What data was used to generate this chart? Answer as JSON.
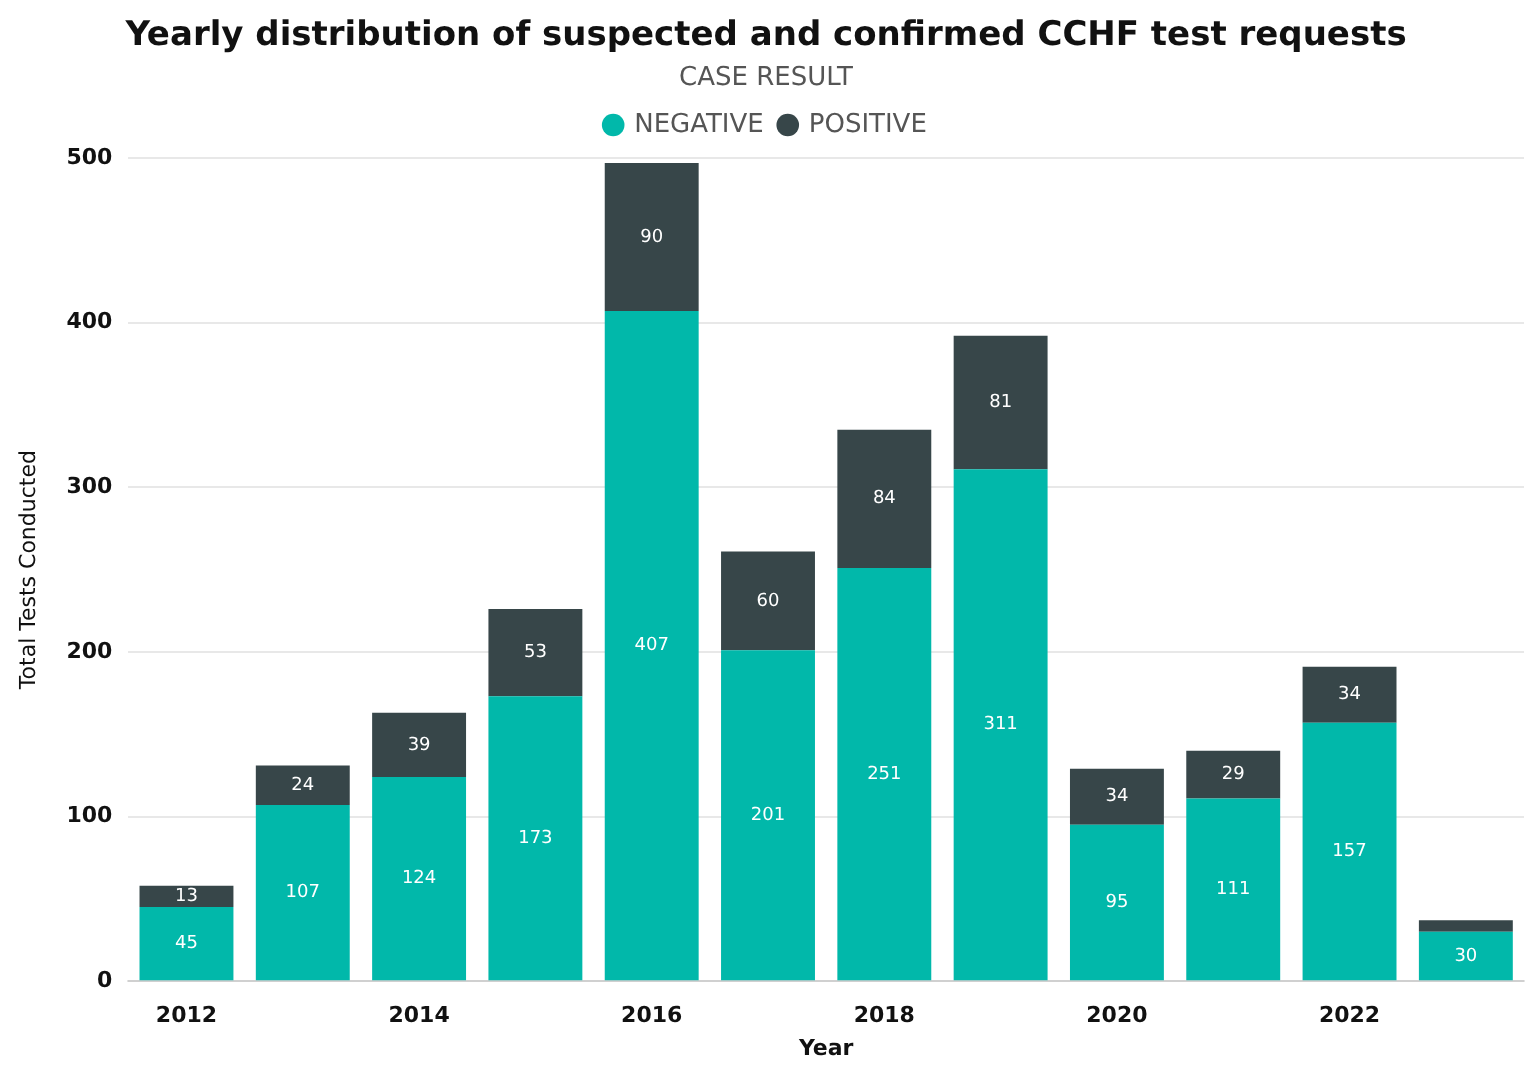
{
  "chart_data": {
    "type": "bar",
    "title": "Yearly distribution of suspected and confirmed CCHF test requests",
    "legend_title": "CASE RESULT",
    "xlabel": "Year",
    "ylabel": "Total Tests Conducted",
    "categories": [
      "2012",
      null,
      "2014",
      null,
      "2016",
      null,
      "2018",
      null,
      "2020",
      null,
      "2022",
      null
    ],
    "stacked": true,
    "ylim": [
      0,
      500
    ],
    "yticks": [
      0,
      100,
      200,
      300,
      400,
      500
    ],
    "grid": "y",
    "legend": "top",
    "series": [
      {
        "name": "NEGATIVE",
        "color": "#01b8aa",
        "values": [
          45,
          107,
          124,
          173,
          407,
          201,
          251,
          311,
          95,
          111,
          157,
          30
        ],
        "value_labels": [
          "45",
          "107",
          "124",
          "173",
          "407",
          "201",
          "251",
          "311",
          "95",
          "111",
          "157",
          "30"
        ]
      },
      {
        "name": "POSITIVE",
        "color": "#374649",
        "values": [
          13,
          24,
          39,
          53,
          90,
          60,
          84,
          81,
          34,
          29,
          34,
          7
        ],
        "value_labels": [
          "13",
          "24",
          "39",
          "53",
          "90",
          "60",
          "84",
          "81",
          "34",
          "29",
          "34",
          null
        ]
      }
    ]
  }
}
